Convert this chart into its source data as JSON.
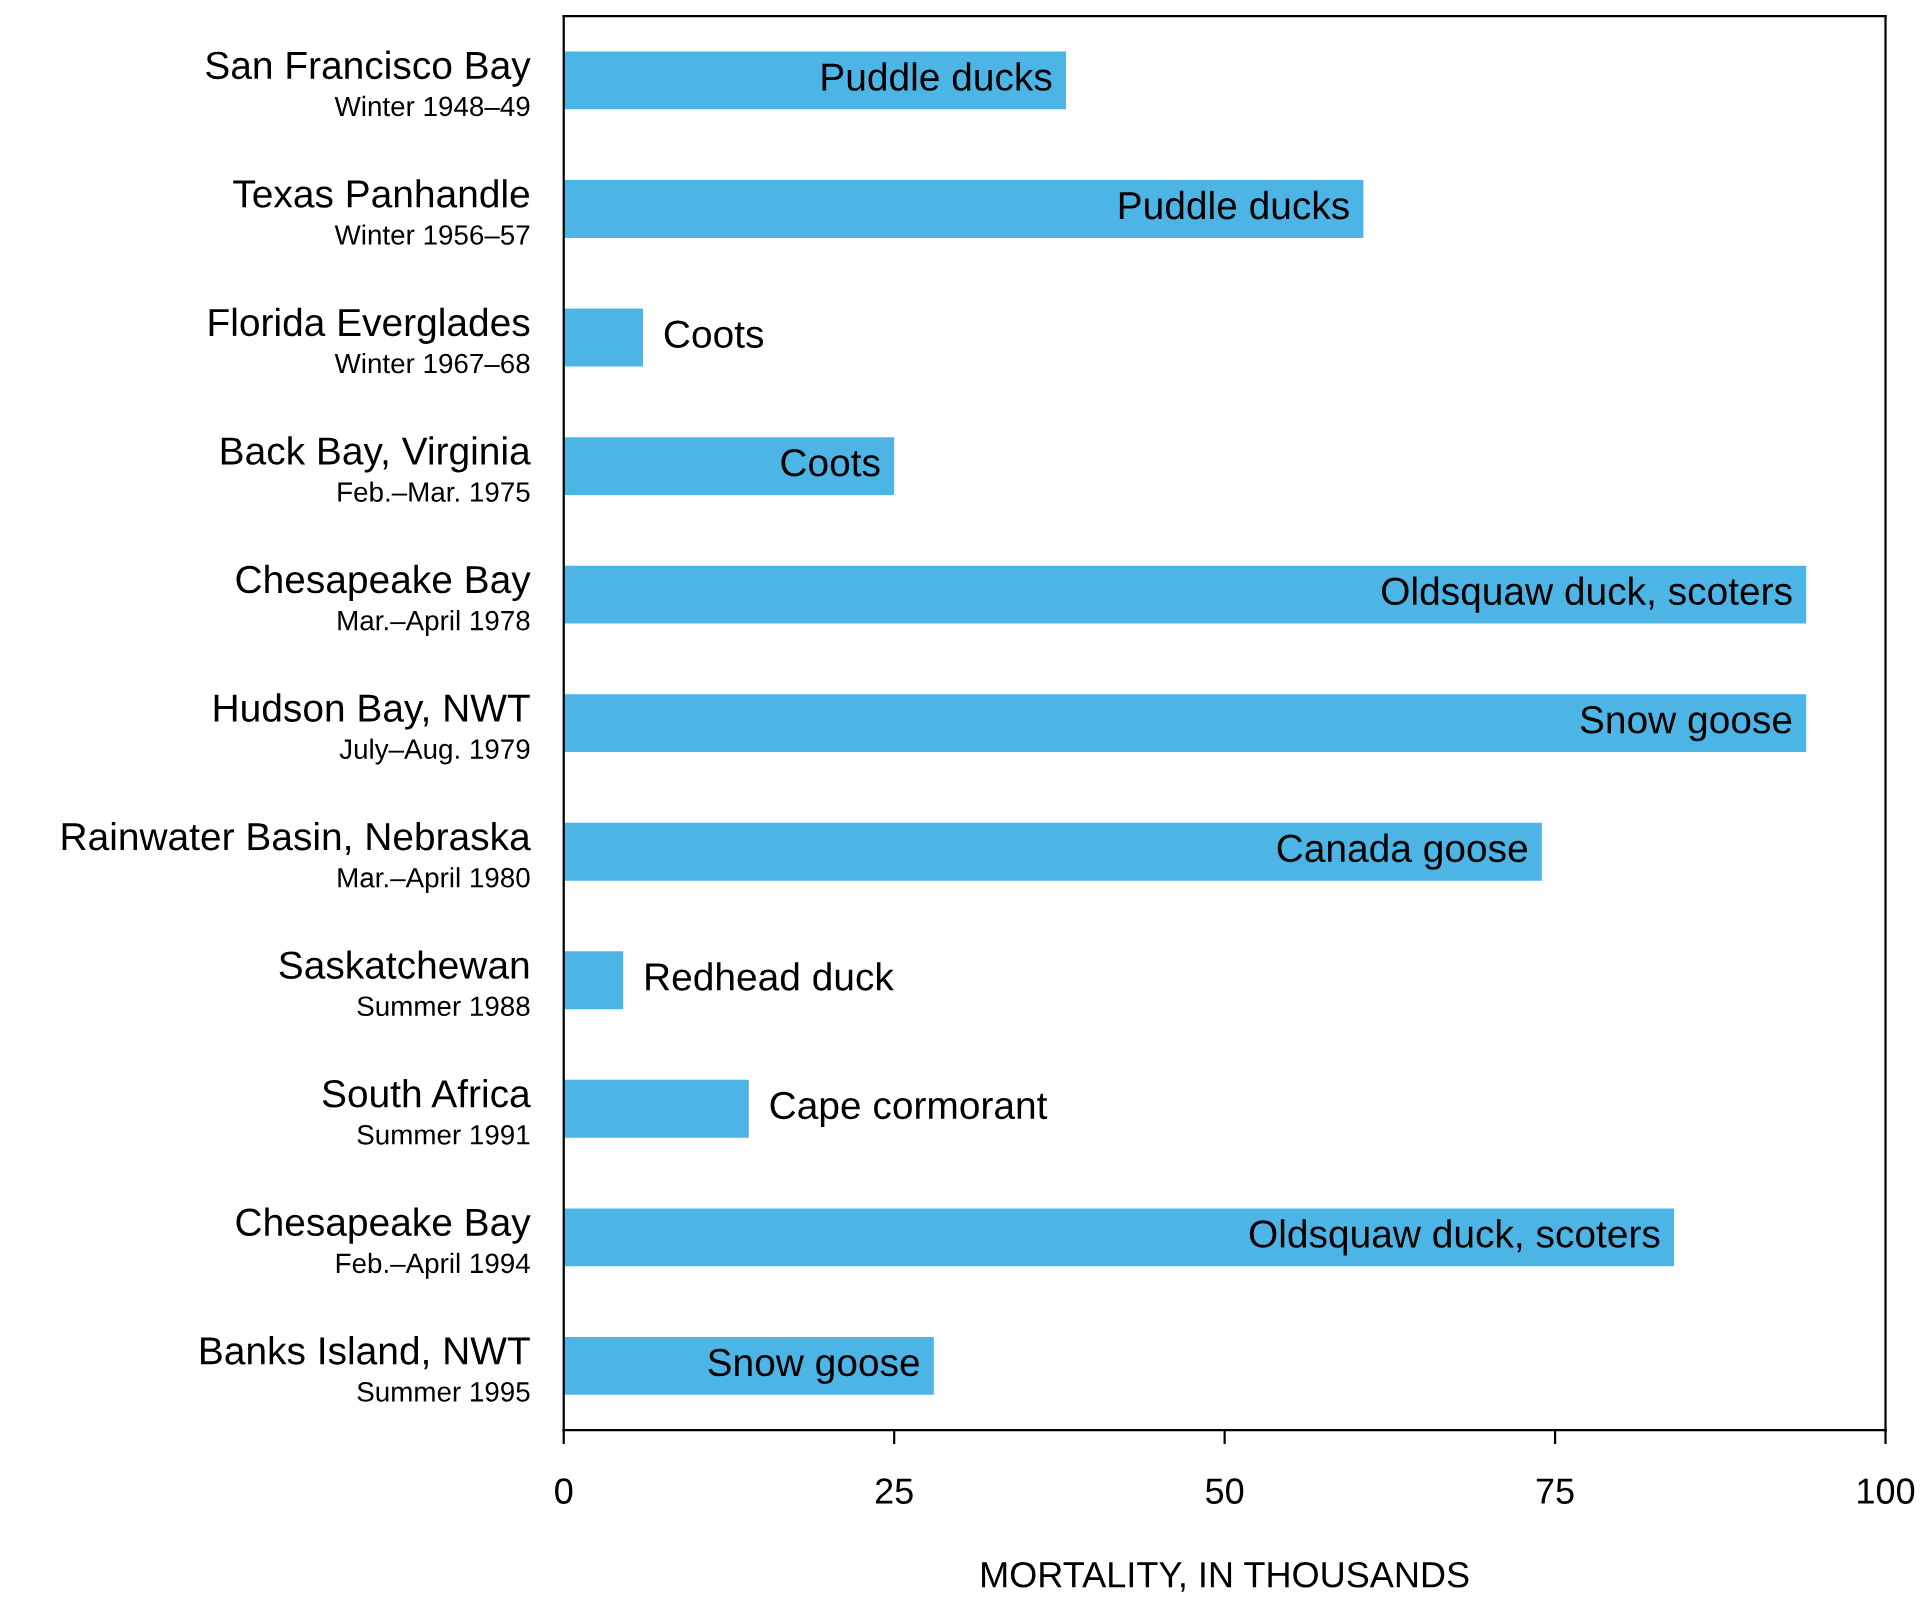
{
  "chart_data": {
    "type": "bar",
    "orientation": "horizontal",
    "xlabel": "MORTALITY, IN THOUSANDS",
    "categories": [
      "San Francisco Bay\nWinter 1948–49",
      "Texas Panhandle\nWinter 1956–57",
      "Florida Everglades\nWinter 1967–68",
      "Back Bay, Virginia\nFeb.–Mar. 1975",
      "Chesapeake Bay\nMar.–April 1978",
      "Hudson Bay, NWT\nJuly–Aug. 1979",
      "Rainwater Basin, Nebraska\nMar.–April 1980",
      "Saskatchewan\nSummer 1988",
      "South Africa\nSummer 1991",
      "Chesapeake Bay\nFeb.–April 1994",
      "Banks Island, NWT\nSummer 1995"
    ],
    "values": [
      38,
      60.5,
      6,
      25,
      94,
      94,
      74,
      4.5,
      14,
      84,
      28
    ],
    "color": "#4cb5e6",
    "xlim": [
      0,
      100
    ],
    "xticks": [
      0,
      25,
      50,
      75,
      100
    ],
    "grid": false,
    "legend": false,
    "annotations": [
      {
        "text": "Puddle ducks",
        "x": 38,
        "y": "San Francisco Bay\nWinter 1948–49"
      },
      {
        "text": "Puddle ducks",
        "x": 60.5,
        "y": "Texas Panhandle\nWinter 1956–57"
      },
      {
        "text": "Coots",
        "x": 6,
        "y": "Florida Everglades\nWinter 1967–68"
      },
      {
        "text": "Coots",
        "x": 25,
        "y": "Back Bay, Virginia\nFeb.–Mar. 1975"
      },
      {
        "text": "Oldsquaw duck, scoters",
        "x": 94,
        "y": "Chesapeake Bay\nMar.–April 1978"
      },
      {
        "text": "Snow goose",
        "x": 94,
        "y": "Hudson Bay, NWT\nJuly–Aug. 1979"
      },
      {
        "text": "Canada goose",
        "x": 74,
        "y": "Rainwater Basin, Nebraska\nMar.–April 1980"
      },
      {
        "text": "Redhead duck",
        "x": 4.5,
        "y": "Saskatchewan\nSummer 1988"
      },
      {
        "text": "Cape cormorant",
        "x": 14,
        "y": "South Africa\nSummer 1991"
      },
      {
        "text": "Oldsquaw duck, scoters",
        "x": 84,
        "y": "Chesapeake Bay\nFeb.–April 1994"
      },
      {
        "text": "Snow goose",
        "x": 28,
        "y": "Banks Island, NWT\nSummer 1995"
      }
    ]
  }
}
